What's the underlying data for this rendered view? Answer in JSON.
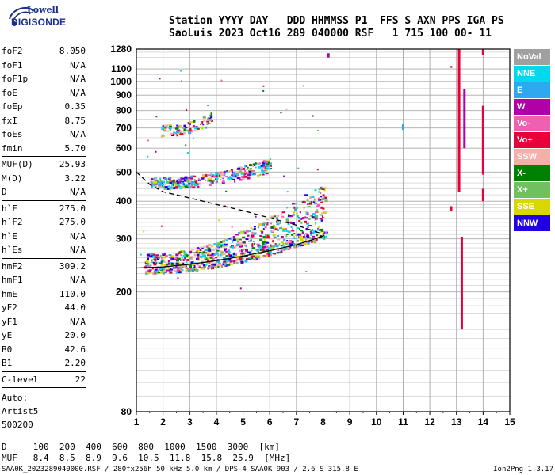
{
  "logo": {
    "line1": "Lowell",
    "line2": "DIGISONDE",
    "icon": "digisonde-logo-icon"
  },
  "header": {
    "row1": "Station YYYY DAY   DDD HHMMSS P1  FFS S AXN PPS IGA PS",
    "row2": "SaoLuis 2023 Oct16 289 040000 RSF   1 715 100 00- 11"
  },
  "params_groups": [
    [
      {
        "name": "foF2",
        "value": "8.050"
      },
      {
        "name": "foF1",
        "value": "N/A"
      },
      {
        "name": "foF1p",
        "value": "N/A"
      },
      {
        "name": "foE",
        "value": "N/A"
      },
      {
        "name": "foEp",
        "value": "0.35"
      },
      {
        "name": "fxI",
        "value": "8.75"
      },
      {
        "name": "foEs",
        "value": "N/A"
      },
      {
        "name": "fmin",
        "value": "5.70"
      }
    ],
    [
      {
        "name": "MUF(D)",
        "value": "25.93"
      },
      {
        "name": "M(D)",
        "value": "3.22"
      },
      {
        "name": "D",
        "value": "N/A"
      }
    ],
    [
      {
        "name": "h`F",
        "value": "275.0"
      },
      {
        "name": "h`F2",
        "value": "275.0"
      },
      {
        "name": "h`E",
        "value": "N/A"
      },
      {
        "name": "h`Es",
        "value": "N/A"
      }
    ],
    [
      {
        "name": "hmF2",
        "value": "309.2"
      },
      {
        "name": "hmF1",
        "value": "N/A"
      },
      {
        "name": "hmE",
        "value": "110.0"
      },
      {
        "name": "yF2",
        "value": "44.0"
      },
      {
        "name": "yF1",
        "value": "N/A"
      },
      {
        "name": "yE",
        "value": "20.0"
      },
      {
        "name": "B0",
        "value": "42.6"
      },
      {
        "name": "B1",
        "value": "2.20"
      }
    ],
    [
      {
        "name": "C-level",
        "value": "22"
      }
    ]
  ],
  "auto_lines": [
    "Auto:",
    "Artist5",
    "500200"
  ],
  "legend": [
    {
      "label": "NoVal",
      "color": "#a0a0a0"
    },
    {
      "label": "NNE",
      "color": "#00d8f0"
    },
    {
      "label": "E",
      "color": "#30a8f0"
    },
    {
      "label": "W",
      "color": "#b000a8"
    },
    {
      "label": "Vo-",
      "color": "#f060b0"
    },
    {
      "label": "Vo+",
      "color": "#e8003a"
    },
    {
      "label": "SSW",
      "color": "#f4b0a8"
    },
    {
      "label": "X-",
      "color": "#008000"
    },
    {
      "label": "X+",
      "color": "#70c060"
    },
    {
      "label": "SSE",
      "color": "#d8d800"
    },
    {
      "label": "NNW",
      "color": "#2000e0"
    }
  ],
  "muf_table": {
    "d_row": "D     100  200  400  600  800  1000  1500  3000  [km]",
    "muf_row": "MUF   8.4  8.5  8.9  9.6  10.5  11.8  15.8  25.9  [MHz]"
  },
  "footer": {
    "left": "SAA0K_2023289040000.RSF / 280fx256h 50 kHz 5.0 km / DPS-4 SAA0K 903 / 2.6 S 315.8 E",
    "right": "Ion2Png 1.3.17"
  },
  "chart_data": {
    "type": "scatter",
    "title": "",
    "xlabel": "",
    "ylabel": "",
    "xlim": [
      1,
      15
    ],
    "ylim": [
      80,
      1280
    ],
    "y_scale": "log",
    "grid": true,
    "x_ticks": [
      "1",
      "2",
      "3",
      "4",
      "5",
      "6",
      "7",
      "8",
      "9",
      "10",
      "11",
      "12",
      "13",
      "14",
      "15"
    ],
    "y_ticks": [
      {
        "value": 80,
        "label": "80"
      },
      {
        "value": 200,
        "label": "200"
      },
      {
        "value": 300,
        "label": "300"
      },
      {
        "value": 400,
        "label": "400"
      },
      {
        "value": 500,
        "label": "500"
      },
      {
        "value": 600,
        "label": "600"
      },
      {
        "value": 700,
        "label": "700"
      },
      {
        "value": 800,
        "label": "800"
      },
      {
        "value": 900,
        "label": "900"
      },
      {
        "value": 1000,
        "label": "1000"
      },
      {
        "value": 1100,
        "label": "1100"
      },
      {
        "value": 1280,
        "label": "1280"
      }
    ],
    "y_minor_gridlines": [
      90,
      100,
      110,
      120,
      130,
      140,
      150,
      160,
      170,
      180,
      190,
      210,
      220,
      230,
      240,
      250,
      260,
      270,
      280,
      290,
      310,
      320,
      330,
      340,
      350,
      360,
      370,
      380,
      390,
      420,
      440,
      460,
      480,
      550,
      650,
      750,
      850,
      950,
      1050,
      1150,
      1200,
      1250
    ],
    "trace_curves": [
      {
        "name": "",
        "style": "solid",
        "points": [
          [
            1.0,
            240
          ],
          [
            2.0,
            242
          ],
          [
            3.0,
            247
          ],
          [
            4.0,
            254
          ],
          [
            5.0,
            263
          ],
          [
            6.0,
            274
          ],
          [
            7.0,
            287
          ],
          [
            7.6,
            298
          ],
          [
            8.0,
            307
          ],
          [
            8.05,
            309
          ]
        ]
      },
      {
        "name": "",
        "style": "dashed",
        "points": [
          [
            1.0,
            500
          ],
          [
            1.5,
            455
          ],
          [
            2.0,
            430
          ],
          [
            3.0,
            410
          ],
          [
            4.0,
            390
          ],
          [
            5.0,
            372
          ],
          [
            6.0,
            352
          ],
          [
            7.0,
            333
          ],
          [
            8.0,
            311
          ]
        ]
      }
    ],
    "echo_regions": [
      {
        "name": "F-trace",
        "x_range": [
          1.3,
          8.1
        ],
        "y_low": [
          232,
          305
        ],
        "y_high": [
          270,
          470
        ],
        "count": 900
      },
      {
        "name": "2F-trace",
        "x_range": [
          1.5,
          6.0
        ],
        "y_low": [
          440,
          500
        ],
        "y_high": [
          480,
          560
        ],
        "count": 320
      },
      {
        "name": "3F-trace",
        "x_range": [
          1.9,
          3.8
        ],
        "y_low": [
          660,
          720
        ],
        "y_high": [
          720,
          790
        ],
        "count": 90
      }
    ],
    "vertical_streaks": [
      {
        "x": 8.2,
        "y_from": 1200,
        "y_to": 1240,
        "color": "#b000a8"
      },
      {
        "x": 11.0,
        "y_from": 690,
        "y_to": 720,
        "color": "#30a8f0"
      },
      {
        "x": 12.8,
        "y_from": 1110,
        "y_to": 1125,
        "color": "#e8003a"
      },
      {
        "x": 12.8,
        "y_from": 370,
        "y_to": 385,
        "color": "#e8003a"
      },
      {
        "x": 13.1,
        "y_from": 430,
        "y_to": 1280,
        "color": "#e8003a"
      },
      {
        "x": 13.2,
        "y_from": 150,
        "y_to": 305,
        "color": "#e8003a"
      },
      {
        "x": 13.3,
        "y_from": 600,
        "y_to": 940,
        "color": "#b000a8"
      },
      {
        "x": 14.0,
        "y_from": 490,
        "y_to": 830,
        "color": "#e8003a"
      },
      {
        "x": 14.0,
        "y_from": 1220,
        "y_to": 1280,
        "color": "#e8003a"
      },
      {
        "x": 14.0,
        "y_from": 400,
        "y_to": 440,
        "color": "#e8003a"
      }
    ]
  }
}
